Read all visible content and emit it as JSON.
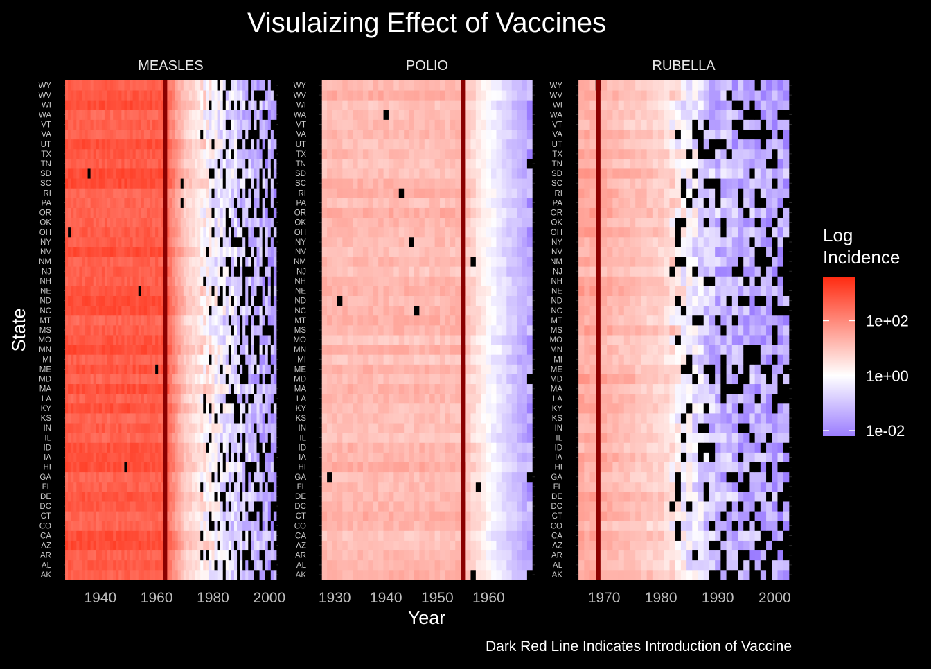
{
  "chart_data": {
    "type": "heatmap",
    "title": "Visulaizing Effect of Vaccines",
    "xlabel": "Year",
    "ylabel": "State",
    "caption": "Dark Red Line Indicates Introduction of Vaccine",
    "states": [
      "AK",
      "AL",
      "AR",
      "AZ",
      "CA",
      "CO",
      "CT",
      "DC",
      "DE",
      "FL",
      "GA",
      "HI",
      "IA",
      "ID",
      "IL",
      "IN",
      "KS",
      "KY",
      "LA",
      "MA",
      "MD",
      "ME",
      "MI",
      "MN",
      "MO",
      "MS",
      "MT",
      "NC",
      "ND",
      "NE",
      "NH",
      "NJ",
      "NM",
      "NV",
      "NY",
      "OH",
      "OK",
      "OR",
      "PA",
      "RI",
      "SC",
      "SD",
      "TN",
      "TX",
      "UT",
      "VA",
      "VT",
      "WA",
      "WI",
      "WV",
      "WY"
    ],
    "legend": {
      "title_line1": "Log",
      "title_line2": "Incidence",
      "scale": "log10",
      "colors": {
        "low": "#9b7dff",
        "mid": "#ffffff",
        "high": "#ff2a10"
      },
      "range": [
        -2.2,
        3.6
      ],
      "breaks": [
        {
          "log": 2,
          "label": "1e+02"
        },
        {
          "log": 0,
          "label": "1e+00"
        },
        {
          "log": -2,
          "label": "1e-02"
        }
      ]
    },
    "missing_color": "#000000",
    "vaccine_line_color": "#8b0000",
    "grid": true,
    "panels": [
      {
        "label": "MEASLES",
        "year_range": [
          1928,
          2002
        ],
        "xlim": [
          1927,
          2003
        ],
        "x_ticks": [
          1940,
          1960,
          1980,
          2000
        ],
        "vaccine_year": 1963,
        "typical_log_incidence": {
          "pre_vaccine": 2.8,
          "1970": 1.0,
          "1985": -0.5,
          "2000": -1.5
        }
      },
      {
        "label": "POLIO",
        "year_range": [
          1928,
          1968
        ],
        "xlim": [
          1927,
          1969
        ],
        "x_ticks": [
          1930,
          1940,
          1950,
          1960
        ],
        "vaccine_year": 1955,
        "typical_log_incidence": {
          "pre_vaccine": 1.2,
          "1960": 0.0,
          "1968": -1.6
        }
      },
      {
        "label": "RUBELLA",
        "year_range": [
          1966,
          2002
        ],
        "xlim": [
          1965,
          2003
        ],
        "x_ticks": [
          1970,
          1980,
          1990,
          2000
        ],
        "vaccine_year": 1969,
        "typical_log_incidence": {
          "pre_vaccine": 1.4,
          "1980": 0.8,
          "1990": -1.2,
          "2000": -1.6
        }
      }
    ]
  }
}
